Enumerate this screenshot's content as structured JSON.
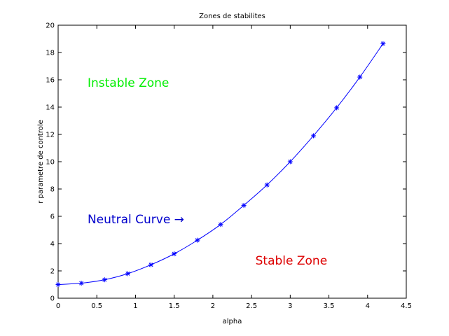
{
  "chart_data": {
    "type": "line",
    "title": "Zones de stabilites",
    "xlabel": "alpha",
    "ylabel": "r parametre de controle",
    "xlim": [
      0,
      4.5
    ],
    "ylim": [
      0,
      20
    ],
    "x_ticks": [
      "0",
      "0.5",
      "1",
      "1.5",
      "2",
      "2.5",
      "3",
      "3.5",
      "4",
      "4.5"
    ],
    "y_ticks": [
      "0",
      "2",
      "4",
      "6",
      "8",
      "10",
      "12",
      "14",
      "16",
      "18",
      "20"
    ],
    "grid": false,
    "series": [
      {
        "color": "#0000ff",
        "marker": "asterisk",
        "x": [
          0,
          0.3,
          0.6,
          0.9,
          1.2,
          1.5,
          1.8,
          2.1,
          2.4,
          2.7,
          3.0,
          3.3,
          3.6,
          3.9,
          4.2
        ],
        "y": [
          1.0,
          1.1,
          1.35,
          1.8,
          2.45,
          3.25,
          4.25,
          5.4,
          6.8,
          8.3,
          10.0,
          11.9,
          13.95,
          16.2,
          18.65
        ]
      }
    ],
    "annotations": [
      {
        "text": "Instable Zone",
        "color": "#00ee00",
        "x": 0.38,
        "y": 15.5
      },
      {
        "text": "Neutral Curve →",
        "color": "#0000cc",
        "x": 0.38,
        "y": 5.5
      },
      {
        "text": "Stable Zone",
        "color": "#dd0000",
        "x": 2.55,
        "y": 2.45
      }
    ]
  }
}
